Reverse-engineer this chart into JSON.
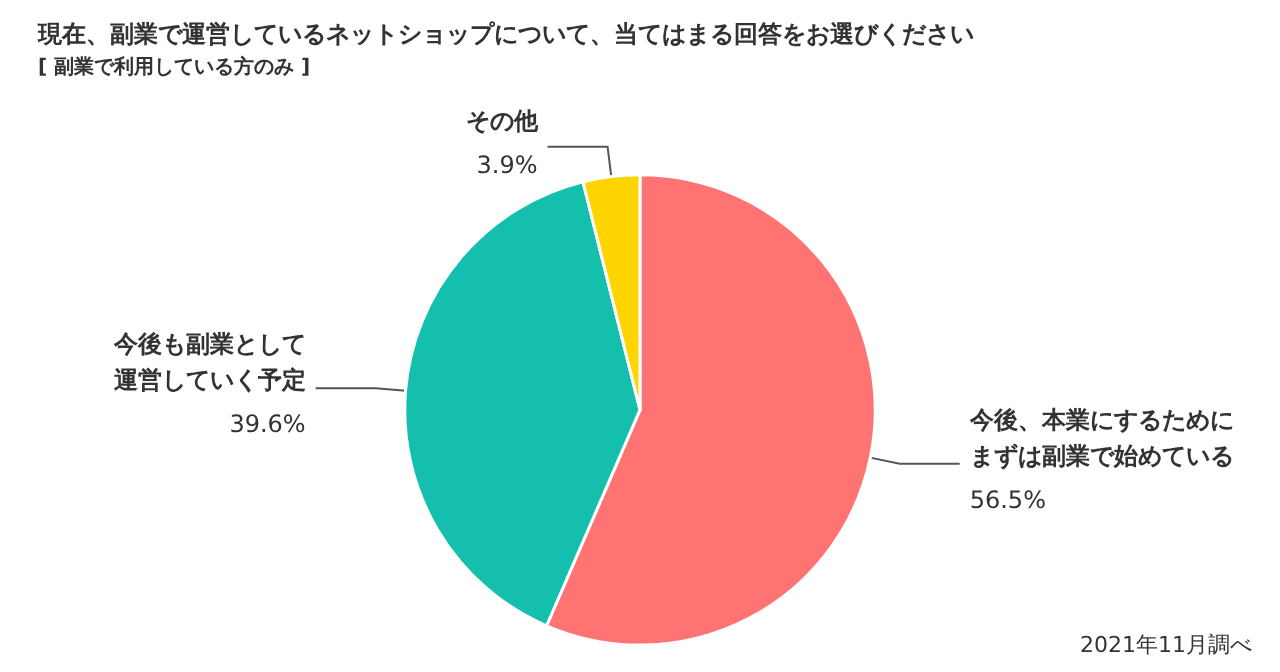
{
  "chart_data": {
    "type": "pie",
    "title": "現在、副業で運営しているネットショップについて、当てはまる回答をお選びください",
    "subtitle": "[ 副業で利用している方のみ ]",
    "categories": [
      "今後、本業にするためにまずは副業で始めている",
      "今後も副業として運営していく予定",
      "その他"
    ],
    "values": [
      56.5,
      39.6,
      3.9
    ],
    "colors": [
      "#ff7373",
      "#14bfae",
      "#ffd400"
    ],
    "annotations": [
      "2021年11月調べ"
    ],
    "legend": false,
    "value_labels": [
      "56.5%",
      "39.6%",
      "3.9%"
    ]
  }
}
